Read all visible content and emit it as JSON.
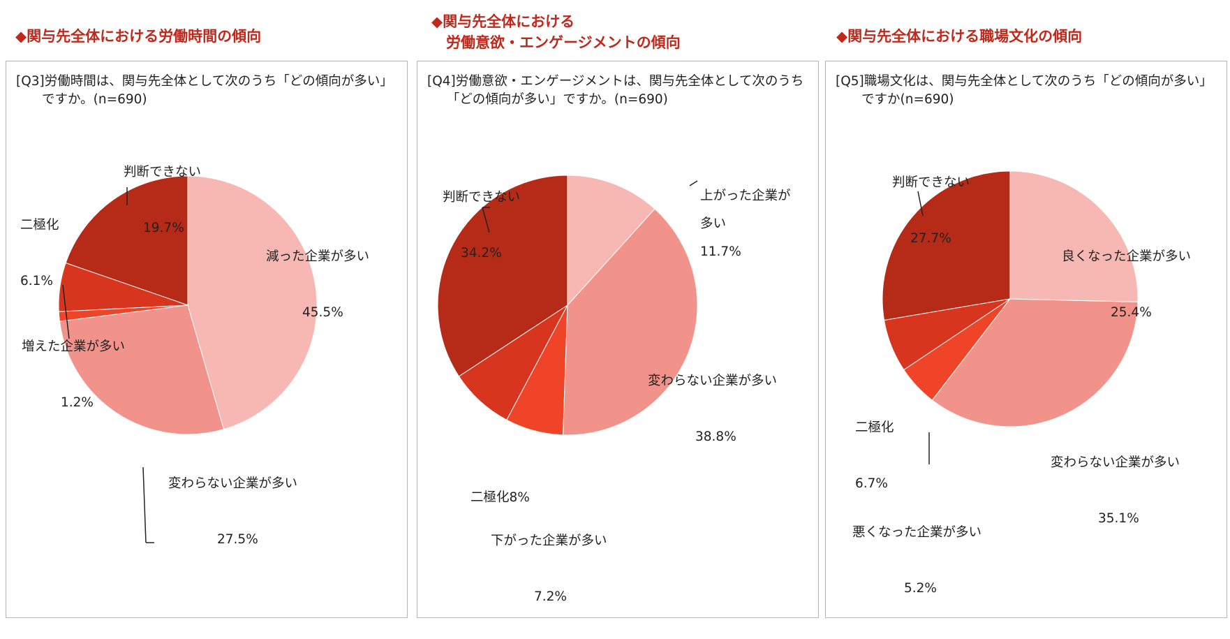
{
  "headings": [
    "◆関与先全体における労働時間の傾向",
    "◆関与先全体における\n　労働意欲・エンゲージメントの傾向",
    "◆関与先全体における職場文化の傾向"
  ],
  "colors": {
    "heading": "#c0281b",
    "slice_light": "#f7b7b3",
    "slice_mid": "#f2938b",
    "slice_orange": "#ef4428",
    "slice_red": "#d8351e",
    "slice_dark": "#b52b18",
    "border": "#b5b5b5"
  },
  "chart_data": [
    {
      "type": "pie",
      "title": "[Q3]労働時間は、関与先全体として次のうち「どの傾向が多い」\n　　ですか。(n=690)",
      "slices": [
        {
          "label": "減った企業が多い",
          "value": 45.5,
          "value_text": "45.5%",
          "color": "#f7b7b3"
        },
        {
          "label": "変わらない企業が多い",
          "value": 27.5,
          "value_text": "27.5%",
          "color": "#f2938b"
        },
        {
          "label": "増えた企業が多い",
          "value": 1.2,
          "value_text": "1.2%",
          "color": "#ef4428"
        },
        {
          "label": "二極化",
          "value": 6.1,
          "value_text": "6.1%",
          "color": "#d8351e"
        },
        {
          "label": "判断できない",
          "value": 19.7,
          "value_text": "19.7%",
          "color": "#b52b18"
        }
      ]
    },
    {
      "type": "pie",
      "title": "[Q4]労働意欲・エンゲージメントは、関与先全体として次のうち\n　　「どの傾向が多い」ですか。(n=690)",
      "slices": [
        {
          "label": "上がった企業が\n多い",
          "value": 11.7,
          "value_text": "11.7%",
          "color": "#f7b7b3"
        },
        {
          "label": "変わらない企業が多い",
          "value": 38.8,
          "value_text": "38.8%",
          "color": "#f2938b"
        },
        {
          "label": "下がった企業が多い",
          "value": 7.2,
          "value_text": "7.2%",
          "color": "#ef4428"
        },
        {
          "label": "二極化",
          "value": 8,
          "value_text": "8%",
          "color": "#d8351e"
        },
        {
          "label": "判断できない",
          "value": 34.2,
          "value_text": "34.2%",
          "color": "#b52b18"
        }
      ]
    },
    {
      "type": "pie",
      "title": "[Q5]職場文化は、関与先全体として次のうち「どの傾向が多い」\n　　ですか(n=690)",
      "slices": [
        {
          "label": "良くなった企業が多い",
          "value": 25.4,
          "value_text": "25.4%",
          "color": "#f7b7b3"
        },
        {
          "label": "変わらない企業が多い",
          "value": 35.1,
          "value_text": "35.1%",
          "color": "#f2938b"
        },
        {
          "label": "悪くなった企業が多い",
          "value": 5.2,
          "value_text": "5.2%",
          "color": "#ef4428"
        },
        {
          "label": "二極化",
          "value": 6.7,
          "value_text": "6.7%",
          "color": "#d8351e"
        },
        {
          "label": "判断できない",
          "value": 27.7,
          "value_text": "27.7%",
          "color": "#b52b18"
        }
      ]
    }
  ]
}
